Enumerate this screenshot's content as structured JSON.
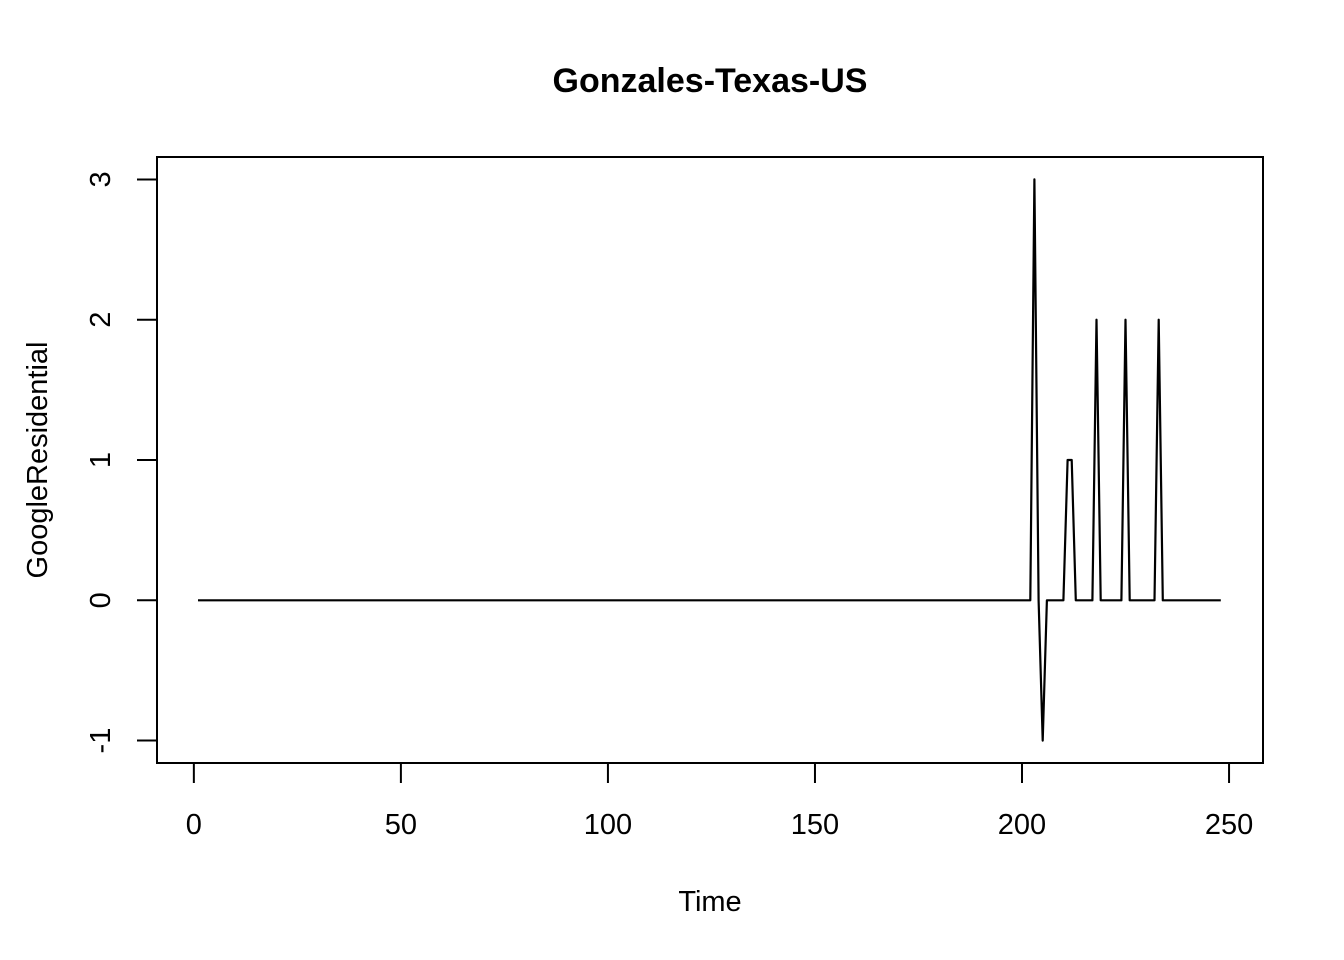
{
  "chart_data": {
    "type": "line",
    "title": "Gonzales-Texas-US",
    "xlabel": "Time",
    "ylabel": "GoogleResidential",
    "xlim": [
      -8.9,
      258.2
    ],
    "ylim": [
      -1.16,
      3.16
    ],
    "xticks": [
      0,
      50,
      100,
      150,
      200,
      250
    ],
    "yticks": [
      -1,
      0,
      1,
      2,
      3
    ],
    "grid": false,
    "legend": "none",
    "color": "#000000",
    "series": [
      {
        "x": [
          1,
          202,
          203,
          204,
          205,
          206,
          210,
          211,
          212,
          213,
          217,
          218,
          219,
          224,
          225,
          226,
          232,
          233,
          234,
          248
        ],
        "y": [
          0,
          0,
          3,
          0,
          -1,
          0,
          0,
          1,
          1,
          0,
          0,
          2,
          0,
          0,
          2,
          0,
          0,
          2,
          0,
          0
        ]
      }
    ]
  }
}
